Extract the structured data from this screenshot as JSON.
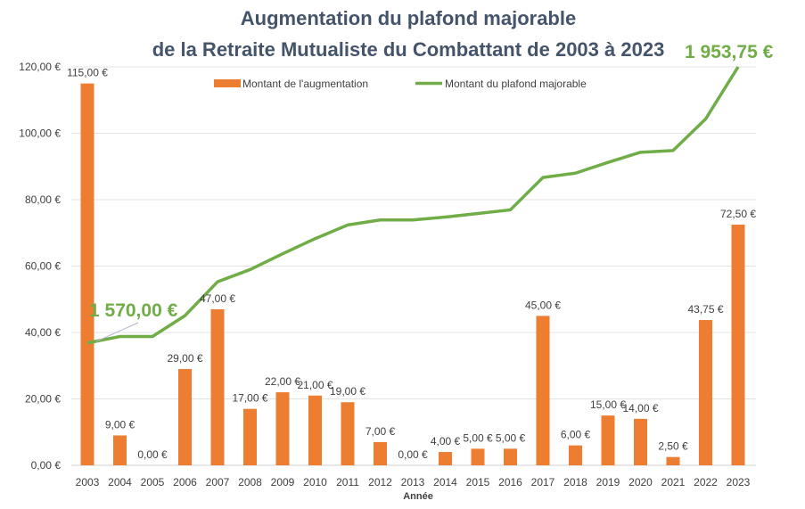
{
  "chart_data": {
    "type": "bar+line",
    "title": [
      "Augmentation du plafond majorable",
      "de la Retraite Mutualiste du Combattant de 2003 à 2023"
    ],
    "xlabel": "Année",
    "ylabel": "",
    "ylim": [
      0,
      120
    ],
    "secondary_ylim": [
      1400,
      1953.75
    ],
    "yticks": [
      "0,00 €",
      "20,00 €",
      "40,00 €",
      "60,00 €",
      "80,00 €",
      "100,00 €",
      "120,00 €"
    ],
    "grid": true,
    "legend_position": "top-center",
    "categories": [
      "2003",
      "2004",
      "2005",
      "2006",
      "2007",
      "2008",
      "2009",
      "2010",
      "2011",
      "2012",
      "2013",
      "2014",
      "2015",
      "2016",
      "2017",
      "2018",
      "2019",
      "2020",
      "2021",
      "2022",
      "2023"
    ],
    "series": [
      {
        "name": "Montant de l'augmentation",
        "type": "bar",
        "color": "#ed7d31",
        "values": [
          115,
          9,
          0,
          29,
          47,
          17,
          22,
          21,
          19,
          7,
          0,
          4,
          5,
          5,
          45,
          6,
          15,
          14,
          2.5,
          43.75,
          72.5
        ],
        "labels": [
          "115,00 €",
          "9,00 €",
          "0,00 €",
          "29,00 €",
          "47,00 €",
          "17,00 €",
          "22,00 €",
          "21,00 €",
          "19,00 €",
          "7,00 €",
          "0,00 €",
          "4,00 €",
          "5,00 €",
          "5,00 €",
          "45,00 €",
          "6,00 €",
          "15,00 €",
          "14,00 €",
          "2,50 €",
          "43,75 €",
          "72,50 €"
        ]
      },
      {
        "name": "Montant du plafond majorable",
        "type": "line",
        "axis": "secondary",
        "color": "#70ad47",
        "values": [
          1570,
          1579,
          1579,
          1608,
          1655,
          1672,
          1694,
          1715,
          1734,
          1741,
          1741,
          1745,
          1750,
          1755,
          1800,
          1806,
          1821,
          1835,
          1837.5,
          1881.25,
          1953.75
        ]
      }
    ],
    "annotations": [
      "1 570,00 €",
      "1 953,75 €"
    ]
  }
}
